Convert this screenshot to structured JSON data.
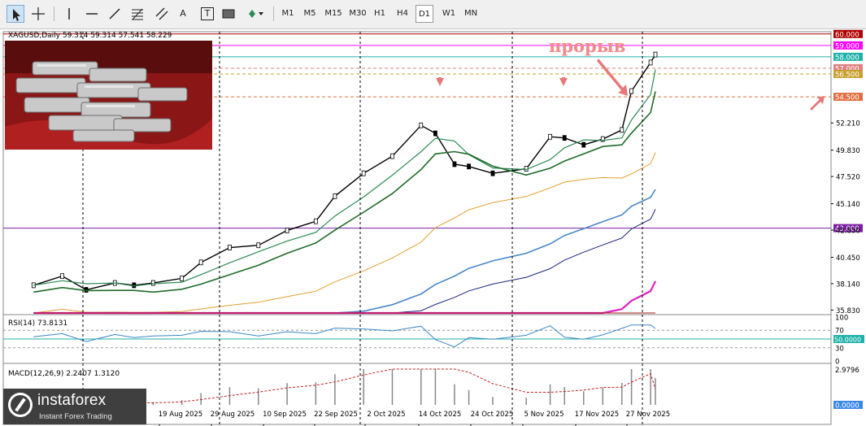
{
  "toolbar": {
    "tools": [
      {
        "name": "cursor-tool",
        "icon": "arrow-cursor-icon",
        "active": true
      },
      {
        "name": "crosshair-tool",
        "icon": "crosshair-icon"
      },
      {
        "name": "vertical-line-tool",
        "icon": "vertical-line-icon"
      },
      {
        "name": "horizontal-line-tool",
        "icon": "horizontal-line-icon"
      },
      {
        "name": "trend-line-tool",
        "icon": "trend-line-icon"
      },
      {
        "name": "fibonacci-tool",
        "icon": "fibonacci-icon"
      },
      {
        "name": "equidistant-channel-tool",
        "icon": "channel-icon"
      },
      {
        "name": "text-tool",
        "label": "A"
      },
      {
        "name": "text-label-tool",
        "label": "T"
      },
      {
        "name": "rectangle-tool",
        "icon": "rectangle-icon"
      },
      {
        "name": "shapes-menu-tool",
        "icon": "shapes-icon"
      }
    ],
    "timeframes": [
      "M1",
      "M5",
      "M15",
      "M30",
      "H1",
      "H4",
      "D1",
      "W1",
      "MN"
    ],
    "active_timeframe": "D1"
  },
  "chart_data": {
    "type": "candlestick",
    "header": "XAGUSD,Daily  59.314 59.314 57.541 58.229",
    "annotation": "прорыв",
    "price_levels": [
      {
        "value": 60.0,
        "label": "60.000",
        "color": "#b00000"
      },
      {
        "value": 59.0,
        "label": "59.000",
        "color": "#ff00ff"
      },
      {
        "value": 58.0,
        "label": "58.000",
        "color": "#20b2aa"
      },
      {
        "value": 57.0,
        "label": "57.000",
        "color": "#e08080"
      },
      {
        "value": 56.5,
        "label": "56.500",
        "color": "#c8a030"
      },
      {
        "value": 54.5,
        "label": "54.500",
        "color": "#e07040"
      },
      {
        "value": 43.0,
        "label": "43.000",
        "color": "#7a1fa2"
      }
    ],
    "y_ticks": [
      "52.210",
      "49.830",
      "47.520",
      "45.140",
      "42.830",
      "40.450",
      "38.140",
      "35.830"
    ],
    "y_tick_values": [
      52.21,
      49.83,
      47.52,
      45.14,
      42.83,
      40.45,
      38.14,
      35.83
    ],
    "ylim": [
      35.5,
      60.2
    ],
    "x_labels": [
      "19 Aug 2025",
      "29 Aug 2025",
      "10 Sep 2025",
      "22 Sep 2025",
      "2 Oct 2025",
      "14 Oct 2025",
      "24 Oct 2025",
      "5 Nov 2025",
      "17 Nov 2025",
      "27 Nov 2025"
    ],
    "close_path_dates": [
      "2025-07-25",
      "2025-07-31",
      "2025-08-05",
      "2025-08-11",
      "2025-08-15",
      "2025-08-19",
      "2025-08-25",
      "2025-08-29",
      "2025-09-04",
      "2025-09-10",
      "2025-09-16",
      "2025-09-22",
      "2025-09-26",
      "2025-10-02",
      "2025-10-08",
      "2025-10-14",
      "2025-10-17",
      "2025-10-21",
      "2025-10-24",
      "2025-10-29",
      "2025-11-05",
      "2025-11-10",
      "2025-11-13",
      "2025-11-17",
      "2025-11-21",
      "2025-11-25",
      "2025-11-27",
      "2025-12-01",
      "2025-12-02"
    ],
    "close_path": [
      38.0,
      38.8,
      37.6,
      38.2,
      38.0,
      38.2,
      38.6,
      40.0,
      41.3,
      41.5,
      42.8,
      43.6,
      45.8,
      47.8,
      49.3,
      52.0,
      51.3,
      48.6,
      48.4,
      47.8,
      48.2,
      51.0,
      50.9,
      50.3,
      50.8,
      51.6,
      55.0,
      57.5,
      58.2
    ],
    "indicators": {
      "rsi": {
        "label": "RSI(14) 73.8131",
        "levels": [
          "70",
          "50.0000",
          "30"
        ],
        "level_values": [
          70,
          50,
          30
        ],
        "scale": [
          "100",
          "0"
        ],
        "ylim": [
          0,
          100
        ],
        "latest": 73.8131
      },
      "macd": {
        "label": "MACD(12,26,9) 2.2407 1.3120",
        "scale_top": "2.9796",
        "scale_bottom": "0.0000",
        "ylim": [
          0,
          2.9796
        ],
        "main": 2.2407,
        "signal": 1.312
      }
    }
  },
  "colors": {
    "level_label_text": "#ffffff",
    "bull_candle": "#ffffff",
    "bear_candle": "#000000",
    "arrow": "#e87878"
  },
  "watermark": {
    "brand": "instaforex",
    "tagline": "Instant Forex Trading"
  }
}
